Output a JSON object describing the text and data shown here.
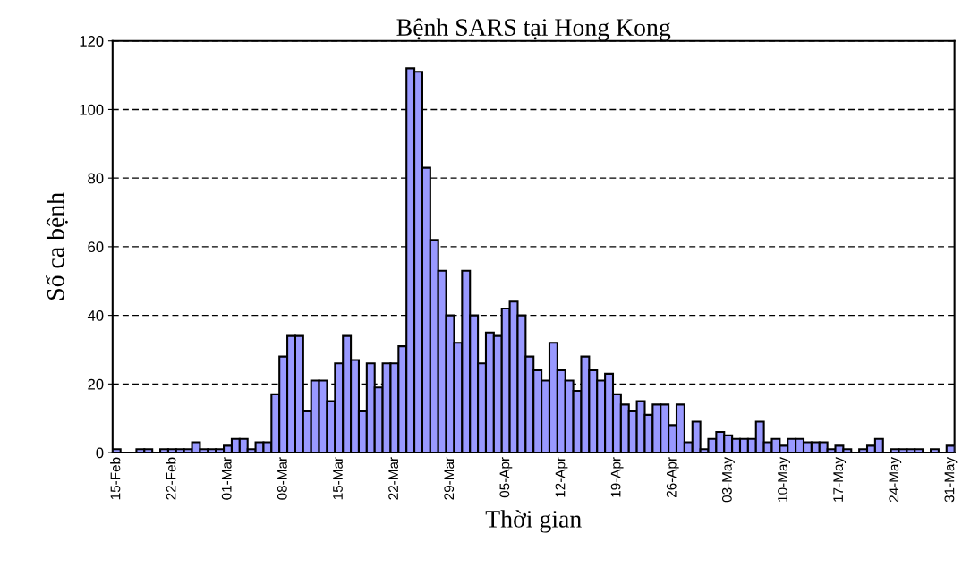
{
  "chart_data": {
    "type": "bar",
    "title": "Bệnh SARS tại Hong Kong",
    "xlabel": "Thời gian",
    "ylabel": "Số ca bệnh",
    "categories": [
      "15-Feb",
      null,
      null,
      null,
      null,
      null,
      null,
      "22-Feb",
      null,
      null,
      null,
      null,
      null,
      null,
      "01-Mar",
      null,
      null,
      null,
      null,
      null,
      null,
      "08-Mar",
      null,
      null,
      null,
      null,
      null,
      null,
      "15-Mar",
      null,
      null,
      null,
      null,
      null,
      null,
      "22-Mar",
      null,
      null,
      null,
      null,
      null,
      null,
      "29-Mar",
      null,
      null,
      null,
      null,
      null,
      null,
      "05-Apr",
      null,
      null,
      null,
      null,
      null,
      null,
      "12-Apr",
      null,
      null,
      null,
      null,
      null,
      null,
      "19-Apr",
      null,
      null,
      null,
      null,
      null,
      null,
      "26-Apr",
      null,
      null,
      null,
      null,
      null,
      null,
      "03-May",
      null,
      null,
      null,
      null,
      null,
      null,
      "10-May",
      null,
      null,
      null,
      null,
      null,
      null,
      "17-May",
      null,
      null,
      null,
      null,
      null,
      null,
      "24-May",
      null,
      null,
      null,
      null,
      null,
      null,
      "31-May"
    ],
    "values": [
      1,
      0,
      0,
      1,
      1,
      0,
      1,
      1,
      1,
      1,
      3,
      1,
      1,
      1,
      2,
      4,
      4,
      1,
      3,
      3,
      17,
      28,
      34,
      34,
      12,
      21,
      21,
      15,
      26,
      34,
      27,
      12,
      26,
      19,
      26,
      26,
      31,
      112,
      111,
      83,
      62,
      53,
      40,
      32,
      53,
      40,
      26,
      35,
      34,
      42,
      44,
      40,
      28,
      24,
      21,
      32,
      24,
      21,
      18,
      28,
      24,
      21,
      23,
      17,
      14,
      12,
      15,
      11,
      14,
      14,
      8,
      14,
      3,
      9,
      1,
      4,
      6,
      5,
      4,
      4,
      4,
      9,
      3,
      4,
      2,
      4,
      4,
      3,
      3,
      3,
      1,
      2,
      1,
      0,
      1,
      2,
      4,
      0,
      1,
      1,
      1,
      1,
      0,
      1,
      0,
      2
    ],
    "color": "#9999ff",
    "ylim": [
      0,
      120
    ],
    "yticks": [
      0,
      20,
      40,
      60,
      80,
      100,
      120
    ],
    "grid": "y"
  }
}
